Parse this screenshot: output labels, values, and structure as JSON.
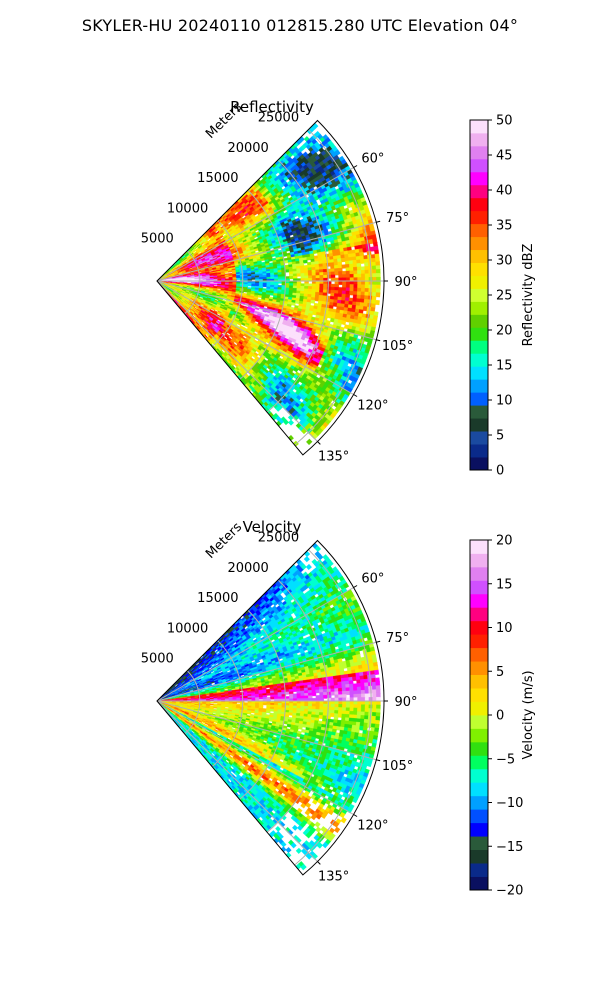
{
  "figure": {
    "title": "SKYLER-HU  20240110  012815.280 UTC Elevation 04°"
  },
  "colors": {
    "reflectivity_cmap": [
      "#0a1060",
      "#0a2a8a",
      "#1a4aa0",
      "#1a3a2a",
      "#2a5a3a",
      "#0060ff",
      "#00a0ff",
      "#00e0ff",
      "#00ffd0",
      "#00ff80",
      "#30e010",
      "#60d000",
      "#a0f000",
      "#d0ff30",
      "#f0f000",
      "#ffe000",
      "#ffc000",
      "#ff9000",
      "#ff6000",
      "#ff2000",
      "#ff0010",
      "#ff0080",
      "#ff00ff",
      "#d050ff",
      "#e080f0",
      "#f0b0f0",
      "#fce0fc"
    ],
    "velocity_cmap": [
      "#0a1060",
      "#0a2a8a",
      "#1a3a2a",
      "#2a5a3a",
      "#0000ff",
      "#0050ff",
      "#00a0ff",
      "#00e0ff",
      "#00ffd0",
      "#00ff60",
      "#30e010",
      "#80f000",
      "#c0ff30",
      "#f0f000",
      "#ffe000",
      "#ffc000",
      "#ff9000",
      "#ff6000",
      "#ff2000",
      "#ff0010",
      "#ff0080",
      "#ff00ff",
      "#d050ff",
      "#e080f0",
      "#f0b0f0",
      "#fce0fc"
    ]
  },
  "chart_data": [
    {
      "type": "heatmap",
      "title": "Reflectivity",
      "projection": "polar-sector",
      "azimuth_range_deg": [
        45,
        140
      ],
      "range_max_m": 26500,
      "range_rings_m": [
        5000,
        10000,
        15000,
        20000,
        25000
      ],
      "radial_axis_label": "Meters",
      "radial_tick_labels": [
        "5000",
        "10000",
        "15000",
        "20000",
        "25000"
      ],
      "azimuth_ticks_deg": [
        60,
        75,
        90,
        105,
        120,
        135
      ],
      "azimuth_tick_labels": [
        "60°",
        "75°",
        "90°",
        "105°",
        "120°",
        "135°"
      ],
      "grid": true,
      "colorbar": {
        "label": "Reflectivity dBZ",
        "min": 0,
        "max": 50,
        "ticks": [
          0,
          5,
          10,
          15,
          20,
          25,
          30,
          35,
          40,
          45,
          50
        ],
        "tick_labels": [
          "0",
          "5",
          "10",
          "15",
          "20",
          "25",
          "30",
          "35",
          "40",
          "45",
          "50"
        ]
      }
    },
    {
      "type": "heatmap",
      "title": "Velocity",
      "projection": "polar-sector",
      "azimuth_range_deg": [
        45,
        140
      ],
      "range_max_m": 26500,
      "range_rings_m": [
        5000,
        10000,
        15000,
        20000,
        25000
      ],
      "radial_axis_label": "Meters",
      "radial_tick_labels": [
        "5000",
        "10000",
        "15000",
        "20000",
        "25000"
      ],
      "azimuth_ticks_deg": [
        60,
        75,
        90,
        105,
        120,
        135
      ],
      "azimuth_tick_labels": [
        "60°",
        "75°",
        "90°",
        "105°",
        "120°",
        "135°"
      ],
      "grid": true,
      "colorbar": {
        "label": "Velocity (m/s)",
        "min": -20,
        "max": 20,
        "ticks": [
          -20,
          -15,
          -10,
          -5,
          0,
          5,
          10,
          15,
          20
        ],
        "tick_labels": [
          "−20",
          "−15",
          "−10",
          "−5",
          "0",
          "5",
          "10",
          "15",
          "20"
        ]
      }
    }
  ]
}
